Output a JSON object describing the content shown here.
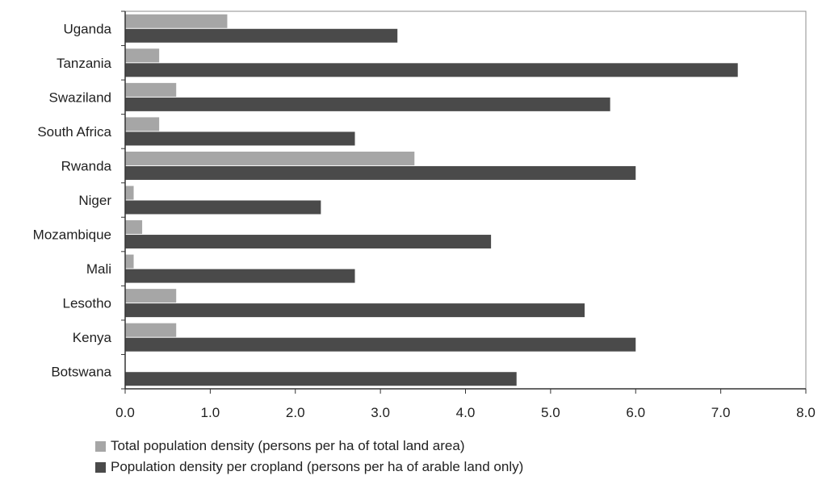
{
  "chart_data": {
    "type": "bar",
    "orientation": "horizontal",
    "title": "",
    "xlabel": "",
    "ylabel": "",
    "categories": [
      "Uganda",
      "Tanzania",
      "Swaziland",
      "South Africa",
      "Rwanda",
      "Niger",
      "Mozambique",
      "Mali",
      "Lesotho",
      "Kenya",
      "Botswana"
    ],
    "series": [
      {
        "name": "Total population density (persons per ha of total land area)",
        "color": "#a6a6a6",
        "values": [
          1.2,
          0.4,
          0.6,
          0.4,
          3.4,
          0.1,
          0.2,
          0.1,
          0.6,
          0.6,
          0.0
        ]
      },
      {
        "name": "Population  density per cropland (persons per ha of arable land only)",
        "color": "#4a4a4a",
        "values": [
          3.2,
          7.2,
          5.7,
          2.7,
          6.0,
          2.3,
          4.3,
          2.7,
          5.4,
          6.0,
          4.6
        ]
      }
    ],
    "xlim": [
      0,
      8
    ],
    "x_ticks": [
      "0.0",
      "1.0",
      "2.0",
      "3.0",
      "4.0",
      "5.0",
      "6.0",
      "7.0",
      "8.0"
    ],
    "grid": false,
    "legend_position": "bottom-left"
  }
}
